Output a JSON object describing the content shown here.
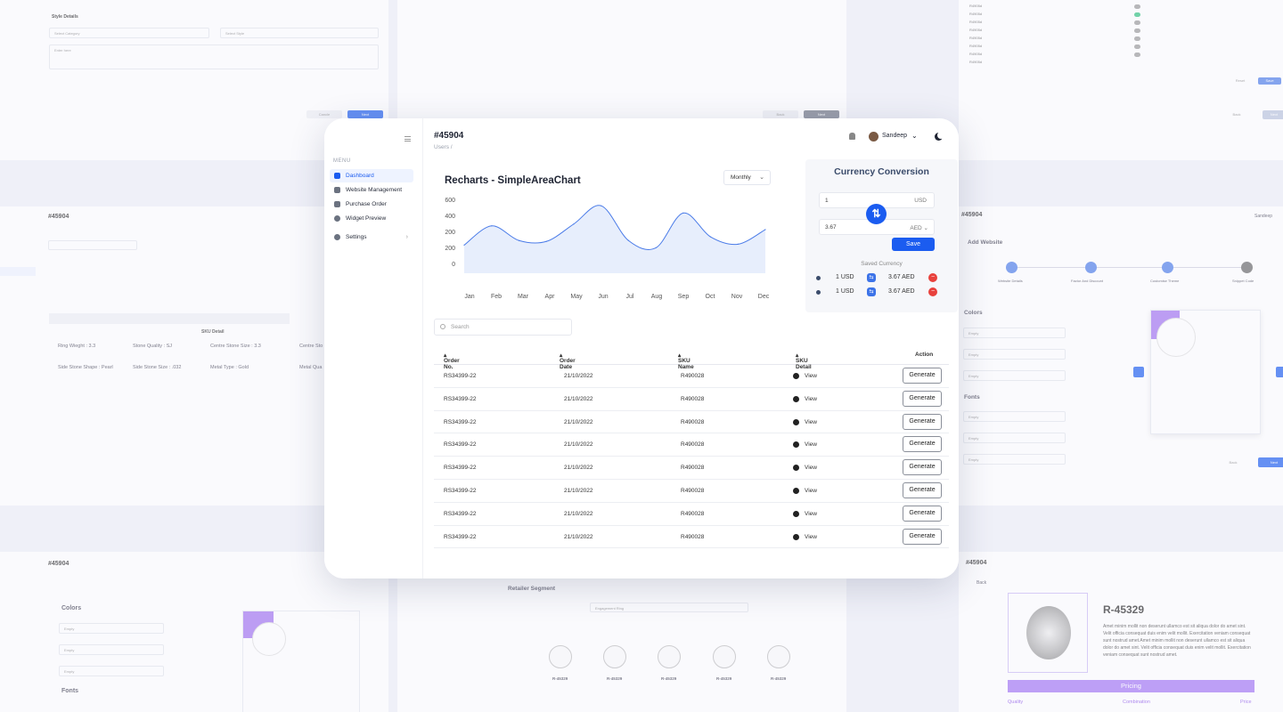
{
  "main": {
    "menu_label": "MENU",
    "nav": [
      {
        "label": "Dashboard"
      },
      {
        "label": "Website Management"
      },
      {
        "label": "Purchase Order"
      },
      {
        "label": "Widget Preview"
      },
      {
        "label": "Settings"
      }
    ],
    "page_title": "#45904",
    "breadcrumb": "Users /",
    "user_name": "Sandeep",
    "chart_dropdown": "Monthly",
    "currency": {
      "title": "Currency Conversion",
      "amount_from": "1",
      "unit_from": "USD",
      "amount_to": "3.67",
      "unit_to": "AED",
      "save_label": "Save",
      "saved_title": "Saved Currency",
      "saved": [
        {
          "from": "1 USD",
          "to": "3.67 AED"
        },
        {
          "from": "1 USD",
          "to": "3.67 AED"
        }
      ]
    },
    "search_placeholder": "Search",
    "table": {
      "headers": [
        "Order No.",
        "Order Date",
        "SKU Name",
        "SKU Detail",
        "Action"
      ],
      "rows": [
        {
          "order": "RS34399-22",
          "date": "21/10/2022",
          "sku": "R490028",
          "detail": "View",
          "action": "Generate"
        },
        {
          "order": "RS34399-22",
          "date": "21/10/2022",
          "sku": "R490028",
          "detail": "View",
          "action": "Generate"
        },
        {
          "order": "RS34399-22",
          "date": "21/10/2022",
          "sku": "R490028",
          "detail": "View",
          "action": "Generate"
        },
        {
          "order": "RS34399-22",
          "date": "21/10/2022",
          "sku": "R490028",
          "detail": "View",
          "action": "Generate"
        },
        {
          "order": "RS34399-22",
          "date": "21/10/2022",
          "sku": "R490028",
          "detail": "View",
          "action": "Generate"
        },
        {
          "order": "RS34399-22",
          "date": "21/10/2022",
          "sku": "R490028",
          "detail": "View",
          "action": "Generate"
        },
        {
          "order": "RS34399-22",
          "date": "21/10/2022",
          "sku": "R490028",
          "detail": "View",
          "action": "Generate"
        },
        {
          "order": "RS34399-22",
          "date": "21/10/2022",
          "sku": "R490028",
          "detail": "View",
          "action": "Generate"
        }
      ]
    }
  },
  "chart_data": {
    "type": "area",
    "title": "Recharts - SimpleAreaChart",
    "categories": [
      "Jan",
      "Feb",
      "Mar",
      "Apr",
      "May",
      "Jun",
      "Jul",
      "Aug",
      "Sep",
      "Oct",
      "Nov",
      "Dec"
    ],
    "y_ticks": [
      "600",
      "400",
      "200",
      "200",
      "0"
    ],
    "values": [
      210,
      420,
      260,
      250,
      440,
      640,
      260,
      180,
      560,
      300,
      220,
      380
    ],
    "line_color": "#4a7be8",
    "fill_color": "#dfe8fb"
  },
  "bg": {
    "style_details": "Style Details",
    "select_category": "Select Category",
    "select_style": "Select Style",
    "enter_here": "Enter here",
    "cancel": "Cancle",
    "next": "Next",
    "back": "Back",
    "reset": "Reset",
    "save": "Save",
    "left_title": "#45904",
    "sku_detail": "SKU Detail",
    "ring_weight": "Ring Wieght : 3.3",
    "stone_quality": "Stone Quality : SJ",
    "centre_stone_size": "Centre Stone Size : 3.3",
    "centre_stone_short": "Centre Sto",
    "side_stone_shape": "Side Stone Shape : Pearl",
    "side_stone_size": "Side Stone Size : .032",
    "metal_type": "Metal Type : Gold",
    "metal_quality_short": "Metal Qua",
    "add_website": "Add Website",
    "steps": [
      "Website Details",
      "Factor And Discount",
      "Customise Theme",
      "Snippet Code"
    ],
    "colors": "Colors",
    "fonts": "Fonts",
    "empty": "Empty",
    "retailer_segment": "Retailer Segment",
    "engagement_ring": "Engagement Ring",
    "ring_code": "R-45329",
    "product_desc": "Amet minim mollit non deserunt ullamco est sit aliqua dolor do amet sint. Velit officia consequat duis enim velit mollit. Exercitation veniam consequat sunt nostrud amet.Amet minim mollit non deserunt ullamco est sit aliqua dolor do amet sint. Velit officia consequat duis enim velit mollit. Exercitation veniam consequat sunt nostrud amet.",
    "pricing": "Pricing",
    "quality": "Quality",
    "combination": "Combination",
    "price": "Price",
    "back_link": "Back",
    "sandeep": "Sandeep",
    "small_sku": "R4905d"
  }
}
